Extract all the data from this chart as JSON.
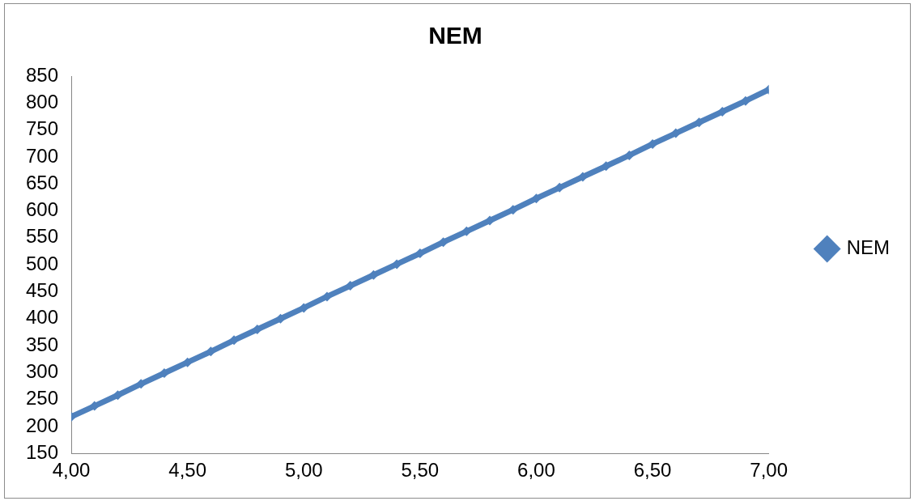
{
  "chart_data": {
    "type": "line",
    "title": "NEM",
    "x": [
      4.0,
      4.1,
      4.2,
      4.3,
      4.4,
      4.5,
      4.6,
      4.7,
      4.8,
      4.9,
      5.0,
      5.1,
      5.2,
      5.3,
      5.4,
      5.5,
      5.6,
      5.7,
      5.8,
      5.9,
      6.0,
      6.1,
      6.2,
      6.3,
      6.4,
      6.5,
      6.6,
      6.7,
      6.8,
      6.9,
      7.0
    ],
    "series": [
      {
        "name": "NEM",
        "color": "#4f81bd",
        "values": [
          218,
          238,
          258,
          279,
          299,
          319,
          339,
          360,
          380,
          400,
          420,
          441,
          461,
          481,
          501,
          521,
          542,
          562,
          582,
          602,
          623,
          643,
          663,
          683,
          703,
          724,
          744,
          764,
          784,
          804,
          825
        ]
      }
    ],
    "xlim": [
      4.0,
      7.0
    ],
    "xticks": [
      {
        "value": 4.0,
        "label": "4,00"
      },
      {
        "value": 4.5,
        "label": "4,50"
      },
      {
        "value": 5.0,
        "label": "5,00"
      },
      {
        "value": 5.5,
        "label": "5,50"
      },
      {
        "value": 6.0,
        "label": "6,00"
      },
      {
        "value": 6.5,
        "label": "6,50"
      },
      {
        "value": 7.0,
        "label": "7,00"
      }
    ],
    "ylim": [
      150,
      850
    ],
    "yticks": [
      150,
      200,
      250,
      300,
      350,
      400,
      450,
      500,
      550,
      600,
      650,
      700,
      750,
      800,
      850
    ],
    "grid": false,
    "legend": "right",
    "marker": "diamond",
    "line_style": "solid"
  }
}
